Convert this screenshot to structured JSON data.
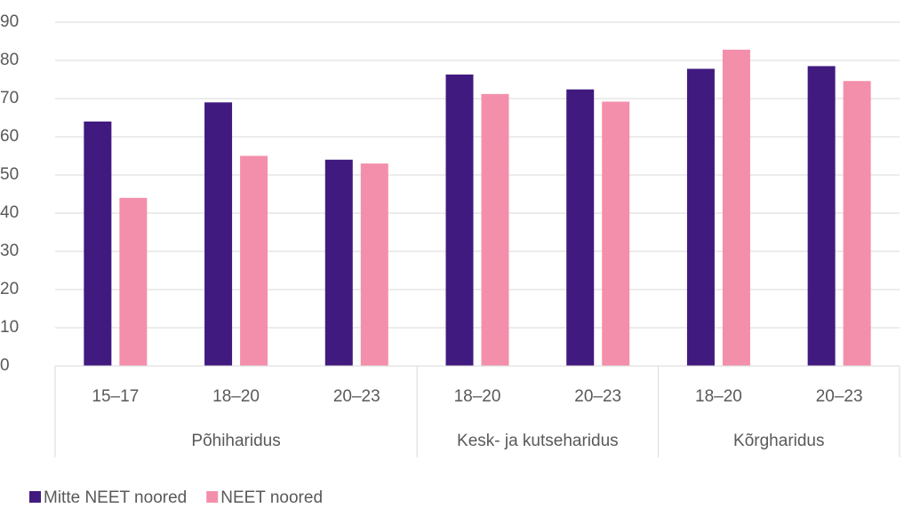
{
  "chart_data": {
    "type": "bar",
    "groups": [
      {
        "name": "Põhiharidus",
        "categories": [
          "15–17",
          "18–20",
          "20–23"
        ]
      },
      {
        "name": "Kesk- ja kutseharidus",
        "categories": [
          "18–20",
          "20–23"
        ]
      },
      {
        "name": "Kõrgharidus",
        "categories": [
          "18–20",
          "20–23"
        ]
      }
    ],
    "series": [
      {
        "name": "Mitte NEET noored",
        "color": "#401a7f",
        "values": [
          64,
          69,
          54,
          76.3,
          72.4,
          77.8,
          78.5
        ]
      },
      {
        "name": "NEET noored",
        "color": "#f48fab",
        "values": [
          44,
          55,
          53,
          71.2,
          69.2,
          82.8,
          74.6
        ]
      }
    ],
    "ylim": [
      0,
      90
    ],
    "yticks": [
      0,
      10,
      20,
      30,
      40,
      50,
      60,
      70,
      80,
      90
    ],
    "grid": true,
    "legend": "bottom-left"
  }
}
